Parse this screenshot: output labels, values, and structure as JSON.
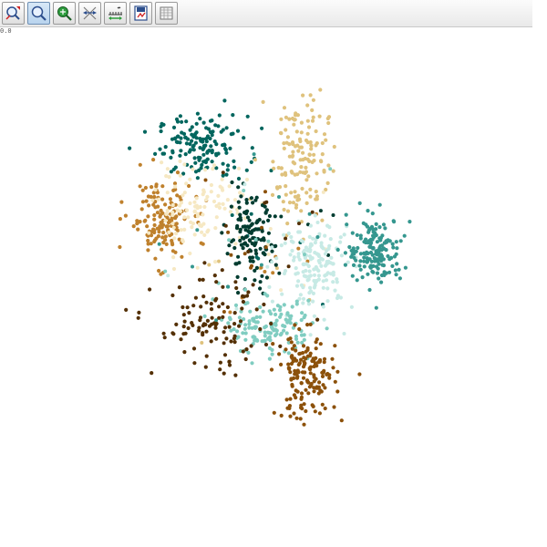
{
  "toolbar": {
    "buttons": [
      {
        "icon": "zoom-in-out-icon",
        "active": false
      },
      {
        "icon": "zoom-icon",
        "active": true
      },
      {
        "icon": "pan-icon",
        "active": false
      },
      {
        "icon": "reset-axes-icon",
        "active": false
      },
      {
        "icon": "axis-settings-icon",
        "active": false
      },
      {
        "icon": "save-figure-icon",
        "active": false
      },
      {
        "icon": "data-table-icon",
        "active": false
      }
    ]
  },
  "coord_readout": "0.0",
  "chart_data": {
    "type": "scatter",
    "title": "",
    "xlabel": "",
    "ylabel": "",
    "grid": false,
    "legend": "none",
    "xlim": [
      0,
      100
    ],
    "ylim": [
      0,
      100
    ],
    "series": [
      {
        "color": "#01665e",
        "center": [
          38.0,
          78.5
        ],
        "spread": [
          4.2,
          3.0
        ],
        "n": 150
      },
      {
        "color": "#dfc27d",
        "center": [
          56.5,
          76.5
        ],
        "spread": [
          2.6,
          6.5
        ],
        "n": 140
      },
      {
        "color": "#bf812d",
        "center": [
          30.0,
          64.0
        ],
        "spread": [
          3.0,
          4.0
        ],
        "n": 150
      },
      {
        "color": "#f6e8c3",
        "center": [
          38.0,
          66.5
        ],
        "spread": [
          4.5,
          4.0
        ],
        "n": 110
      },
      {
        "color": "#003c30",
        "center": [
          47.0,
          60.0
        ],
        "spread": [
          2.3,
          4.0
        ],
        "n": 120
      },
      {
        "color": "#c7eae5",
        "center": [
          59.5,
          55.5
        ],
        "spread": [
          3.5,
          4.2
        ],
        "n": 160
      },
      {
        "color": "#35978f",
        "center": [
          70.5,
          58.0
        ],
        "spread": [
          2.6,
          3.3
        ],
        "n": 170
      },
      {
        "color": "#80cdc1",
        "center": [
          50.5,
          43.0
        ],
        "spread": [
          4.0,
          2.5
        ],
        "n": 140
      },
      {
        "color": "#543005",
        "center": [
          40.0,
          43.0
        ],
        "spread": [
          5.5,
          4.5
        ],
        "n": 110
      },
      {
        "color": "#8c510a",
        "center": [
          57.5,
          33.5
        ],
        "spread": [
          2.8,
          4.2
        ],
        "n": 160
      }
    ]
  }
}
